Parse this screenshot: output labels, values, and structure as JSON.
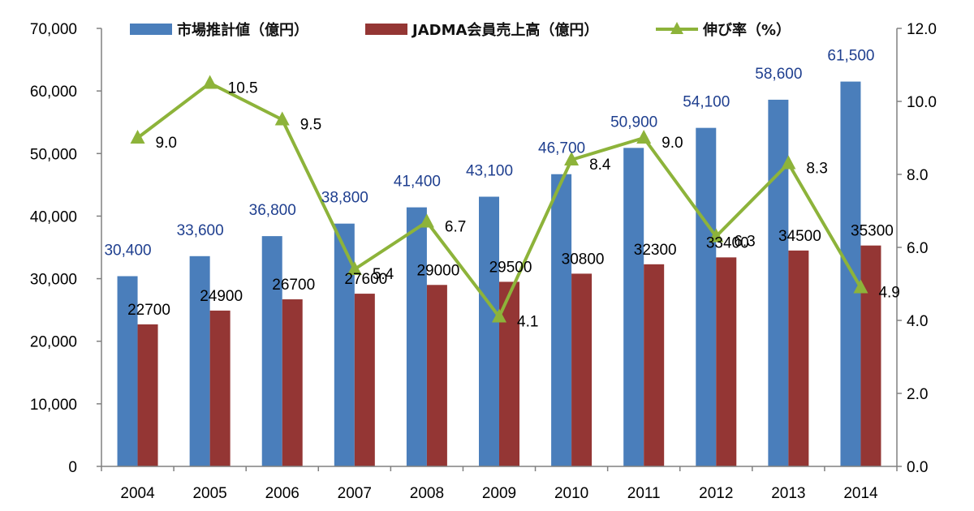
{
  "chart_data": {
    "type": "bar",
    "categories": [
      "2004",
      "2005",
      "2006",
      "2007",
      "2008",
      "2009",
      "2010",
      "2011",
      "2012",
      "2013",
      "2014"
    ],
    "series": [
      {
        "name": "市場推計値（億円）",
        "type": "bar",
        "axis": "left",
        "color": "#4a7ebb",
        "values": [
          30400,
          33600,
          36800,
          38800,
          41400,
          43100,
          46700,
          50900,
          54100,
          58600,
          61500
        ],
        "labels": [
          "30,400",
          "33,600",
          "36,800",
          "38,800",
          "41,400",
          "43,100",
          "46,700",
          "50,900",
          "54,100",
          "58,600",
          "61,500"
        ]
      },
      {
        "name": "JADMA会員売上高（億円）",
        "type": "bar",
        "axis": "left",
        "color": "#943634",
        "values": [
          22700,
          24900,
          26700,
          27600,
          29000,
          29500,
          30800,
          32300,
          33400,
          34500,
          35300
        ],
        "labels": [
          "22700",
          "24900",
          "26700",
          "27600",
          "29000",
          "29500",
          "30800",
          "32300",
          "33400",
          "34500",
          "35300"
        ]
      },
      {
        "name": "伸び率（%）",
        "type": "line",
        "axis": "right",
        "color": "#8db33a",
        "marker": "triangle",
        "values": [
          9.0,
          10.5,
          9.5,
          5.4,
          6.7,
          4.1,
          8.4,
          9.0,
          6.3,
          8.3,
          4.9
        ],
        "labels": [
          "9.0",
          "10.5",
          "9.5",
          "5.4",
          "6.7",
          "4.1",
          "8.4",
          "9.0",
          "6.3",
          "8.3",
          "4.9"
        ]
      }
    ],
    "y_left": {
      "range": [
        0,
        70000
      ],
      "ticks": [
        "0",
        "10,000",
        "20,000",
        "30,000",
        "40,000",
        "50,000",
        "60,000",
        "70,000"
      ]
    },
    "y_right": {
      "range": [
        0,
        12
      ],
      "ticks": [
        "0.0",
        "2.0",
        "4.0",
        "6.0",
        "8.0",
        "10.0",
        "12.0"
      ]
    },
    "grid": false,
    "legend_position": "top"
  }
}
